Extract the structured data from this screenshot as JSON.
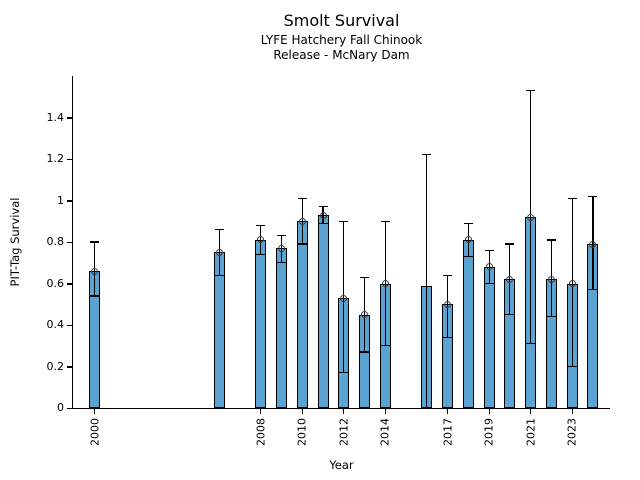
{
  "chart_data": {
    "type": "bar",
    "title": "Smolt Survival",
    "subtitle_line1": "LYFE Hatchery Fall Chinook",
    "subtitle_line2": "Release - McNary Dam",
    "xlabel": "Year",
    "ylabel": "PIT-Tag Survival",
    "ylim": [
      0,
      1.6
    ],
    "grid": "off",
    "legend": "none",
    "ytick_values": [
      0,
      0.2,
      0.4,
      0.6,
      0.8,
      1,
      1.2,
      1.4
    ],
    "ytick_labels": [
      "0",
      "0.2",
      "0.4",
      "0.6",
      "0.8",
      "1",
      "1.2",
      "1.4"
    ],
    "xtick_years": [
      2000,
      2008,
      2010,
      2012,
      2014,
      2017,
      2019,
      2021,
      2023
    ],
    "error_bar_meaning": "confidence-interval",
    "colors": {
      "bar_fill": "#5BA4D2",
      "bar_edge": "#000000",
      "error_bar": "#000000",
      "marker_edge": "#3B3B3B",
      "background": "#FFFFFF"
    },
    "bars": [
      {
        "year": 2000,
        "survival": 0.66,
        "ci_low": 0.54,
        "ci_high": 0.8,
        "marker": true
      },
      {
        "year": 2006,
        "survival": 0.75,
        "ci_low": 0.64,
        "ci_high": 0.86,
        "marker": true
      },
      {
        "year": 2008,
        "survival": 0.81,
        "ci_low": 0.74,
        "ci_high": 0.88,
        "marker": true
      },
      {
        "year": 2009,
        "survival": 0.77,
        "ci_low": 0.7,
        "ci_high": 0.83,
        "marker": true
      },
      {
        "year": 2010,
        "survival": 0.9,
        "ci_low": 0.79,
        "ci_high": 1.01,
        "marker": true
      },
      {
        "year": 2011,
        "survival": 0.93,
        "ci_low": 0.89,
        "ci_high": 0.97,
        "marker": true
      },
      {
        "year": 2012,
        "survival": 0.53,
        "ci_low": 0.17,
        "ci_high": 0.9,
        "marker": true
      },
      {
        "year": 2013,
        "survival": 0.45,
        "ci_low": 0.27,
        "ci_high": 0.63,
        "marker": true
      },
      {
        "year": 2014,
        "survival": 0.6,
        "ci_low": 0.3,
        "ci_high": 0.9,
        "marker": true
      },
      {
        "year": 2016,
        "survival": 0.59,
        "ci_low": 0.0,
        "ci_high": 1.22,
        "marker": false
      },
      {
        "year": 2017,
        "survival": 0.5,
        "ci_low": 0.34,
        "ci_high": 0.64,
        "marker": true
      },
      {
        "year": 2018,
        "survival": 0.81,
        "ci_low": 0.73,
        "ci_high": 0.89,
        "marker": true
      },
      {
        "year": 2019,
        "survival": 0.68,
        "ci_low": 0.6,
        "ci_high": 0.76,
        "marker": true
      },
      {
        "year": 2020,
        "survival": 0.62,
        "ci_low": 0.45,
        "ci_high": 0.79,
        "marker": true
      },
      {
        "year": 2021,
        "survival": 0.92,
        "ci_low": 0.31,
        "ci_high": 1.53,
        "marker": true
      },
      {
        "year": 2022,
        "survival": 0.62,
        "ci_low": 0.44,
        "ci_high": 0.81,
        "marker": true
      },
      {
        "year": 2023,
        "survival": 0.6,
        "ci_low": 0.2,
        "ci_high": 1.01,
        "marker": true
      },
      {
        "year": 2024,
        "survival": 0.79,
        "ci_low": 0.57,
        "ci_high": 1.02,
        "marker": true
      }
    ]
  }
}
